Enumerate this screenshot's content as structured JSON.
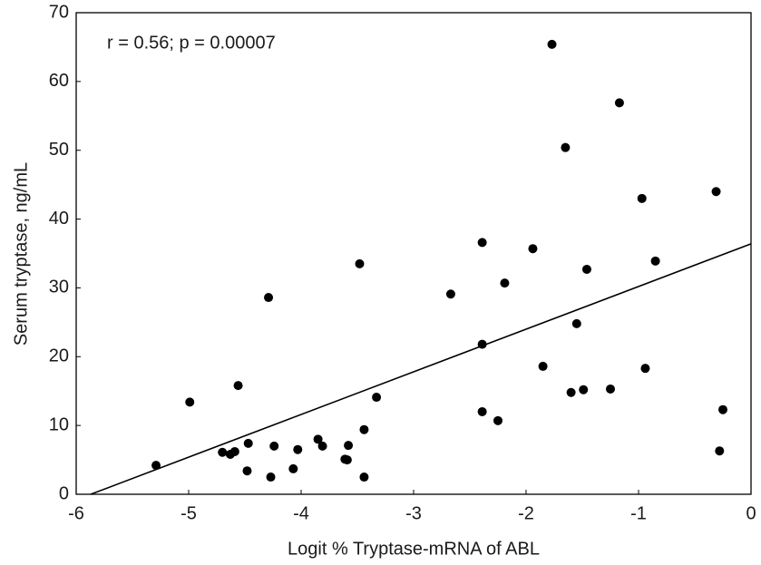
{
  "chart_data": {
    "type": "scatter",
    "x_label": "Logit % Tryptase-mRNA of ABL",
    "y_label": "Serum tryptase, ng/mL",
    "annotation": "r = 0.56; p = 0.00007",
    "color": "#000000",
    "x": [
      -5.29,
      -4.99,
      -4.7,
      -4.63,
      -4.59,
      -4.56,
      -4.47,
      -4.48,
      -4.29,
      -4.27,
      -4.24,
      -4.07,
      -4.03,
      -3.85,
      -3.81,
      -3.61,
      -3.59,
      -3.58,
      -3.48,
      -3.44,
      -3.44,
      -3.33,
      -2.67,
      -2.39,
      -2.39,
      -2.39,
      -2.25,
      -2.19,
      -1.94,
      -1.85,
      -1.77,
      -1.65,
      -1.6,
      -1.55,
      -1.49,
      -1.46,
      -1.25,
      -1.17,
      -0.97,
      -0.94,
      -0.85,
      -0.31,
      -0.28,
      -0.25
    ],
    "values": [
      4.2,
      13.4,
      6.1,
      5.8,
      6.2,
      15.8,
      7.4,
      3.4,
      28.6,
      2.5,
      7.0,
      3.7,
      6.5,
      8.0,
      7.0,
      5.1,
      5.0,
      7.1,
      33.5,
      9.4,
      2.5,
      14.1,
      29.1,
      36.6,
      21.8,
      12.0,
      10.7,
      30.7,
      35.7,
      18.6,
      65.4,
      50.4,
      14.8,
      24.8,
      15.2,
      32.7,
      15.3,
      56.9,
      43.0,
      18.3,
      33.9,
      44.0,
      6.3,
      12.3
    ],
    "fit_line": {
      "x": [
        -5.87,
        0
      ],
      "y": [
        0,
        36.4
      ]
    },
    "xlim": [
      -6,
      0
    ],
    "ylim": [
      0,
      70
    ],
    "xticks": [
      -6,
      -5,
      -4,
      -3,
      -2,
      -1,
      0
    ],
    "yticks": [
      0,
      10,
      20,
      30,
      40,
      50,
      60,
      70
    ],
    "grid": false
  }
}
